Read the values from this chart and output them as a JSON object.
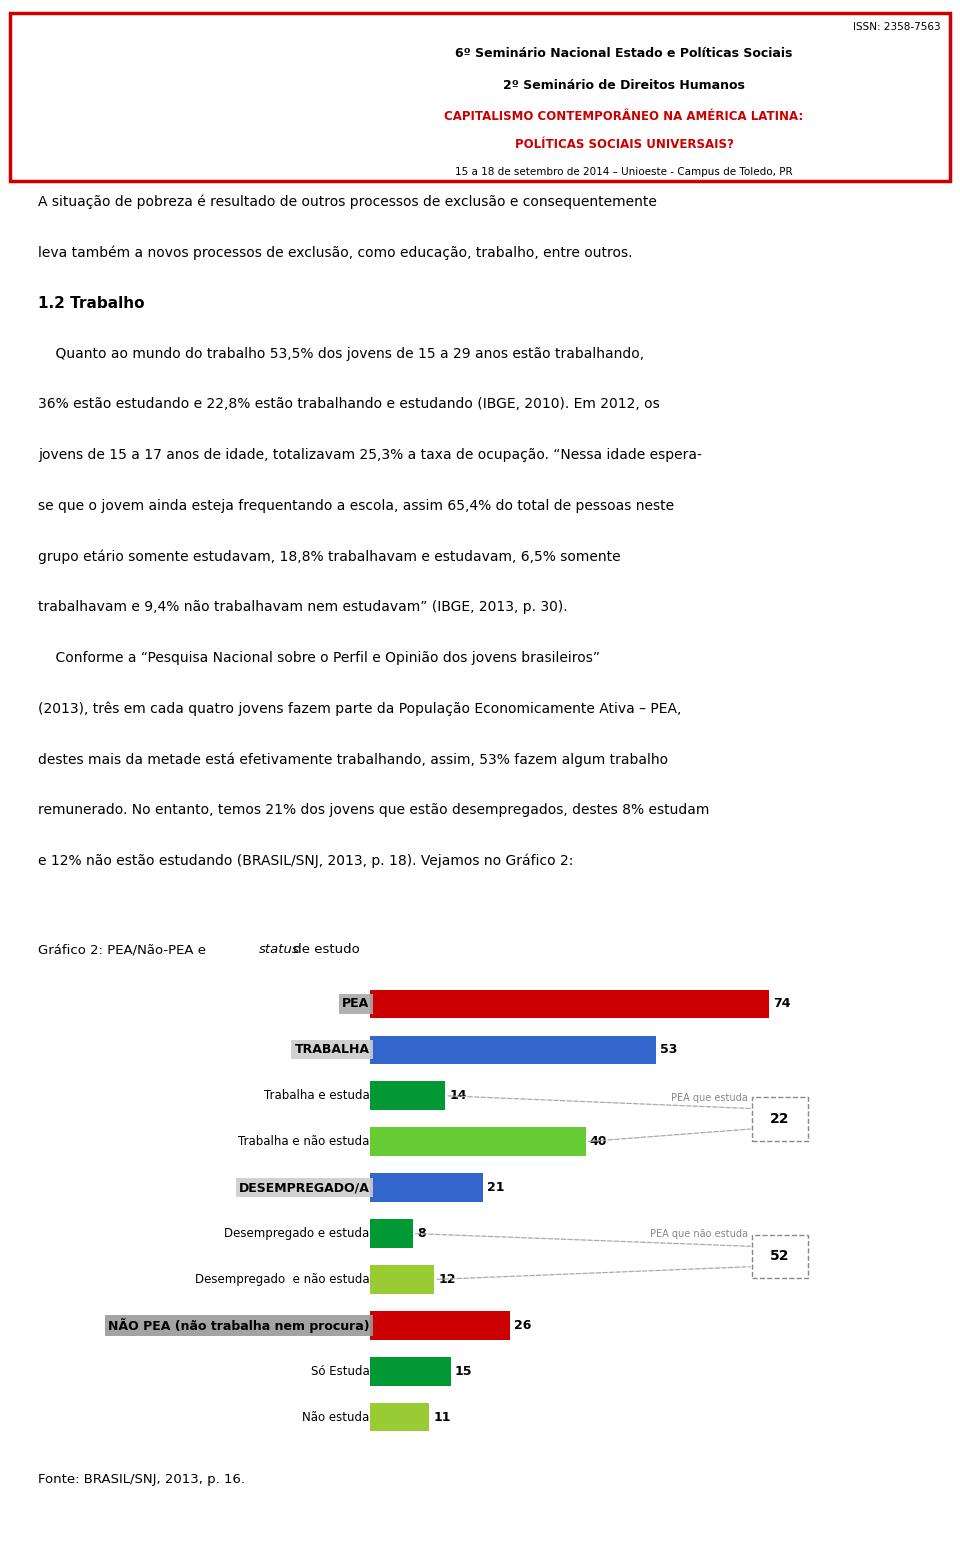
{
  "page_bg": "#ffffff",
  "header": {
    "issn": "ISSN: 2358-7563",
    "line1": "6º Seminário Nacional Estado e Políticas Sociais",
    "line2": "2º Seminário de Direitos Humanos",
    "red_line1": "CAPITALISMO CONTEMPORÂNEO NA AMÉRICA LATINA:",
    "red_line2": "POLÍTICAS SOCIAIS UNIVERSAIS?",
    "date_line": "15 a 18 de setembro de 2014 – Unioeste - Campus de Toledo, PR"
  },
  "body_lines": [
    {
      "text": "A situação de pobreza é resultado de outros processos de exclusão e consequentemente",
      "bold": false,
      "indent": false
    },
    {
      "text": "leva também a novos processos de exclusão, como educação, trabalho, entre outros.",
      "bold": false,
      "indent": false
    },
    {
      "text": "1.2 Trabalho",
      "bold": true,
      "indent": false
    },
    {
      "text": "    Quanto ao mundo do trabalho 53,5% dos jovens de 15 a 29 anos estão trabalhando,",
      "bold": false,
      "indent": true
    },
    {
      "text": "36% estão estudando e 22,8% estão trabalhando e estudando (IBGE, 2010). Em 2012, os",
      "bold": false,
      "indent": false
    },
    {
      "text": "jovens de 15 a 17 anos de idade, totalizavam 25,3% a taxa de ocupação. “Nessa idade espera-",
      "bold": false,
      "indent": false
    },
    {
      "text": "se que o jovem ainda esteja frequentando a escola, assim 65,4% do total de pessoas neste",
      "bold": false,
      "indent": false
    },
    {
      "text": "grupo etário somente estudavam, 18,8% trabalhavam e estudavam, 6,5% somente",
      "bold": false,
      "indent": false
    },
    {
      "text": "trabalhavam e 9,4% não trabalhavam nem estudavam” (IBGE, 2013, p. 30).",
      "bold": false,
      "indent": false
    },
    {
      "text": "    Conforme a “Pesquisa Nacional sobre o Perfil e Opinião dos jovens brasileiros”",
      "bold": false,
      "indent": true
    },
    {
      "text": "(2013), três em cada quatro jovens fazem parte da População Economicamente Ativa – PEA,",
      "bold": false,
      "indent": false
    },
    {
      "text": "destes mais da metade está efetivamente trabalhando, assim, 53% fazem algum trabalho",
      "bold": false,
      "indent": false
    },
    {
      "text": "remunerado. No entanto, temos 21% dos jovens que estão desempregados, destes 8% estudam",
      "bold": false,
      "indent": false
    },
    {
      "text": "e 12% não estão estudando (BRASIL/SNJ, 2013, p. 18). Vejamos no Gráfico 2:",
      "bold": false,
      "indent": false
    }
  ],
  "chart_title_plain": "Gráfico 2: PEA/Não-PEA e ",
  "chart_title_italic": "status",
  "chart_title_end": " de estudo",
  "categories": [
    "PEA",
    "TRABALHA",
    "Trabalha e estuda",
    "Trabalha e não estuda",
    "DESEMPREGADO/A",
    "Desempregado e estuda",
    "Desempregado  e não estuda",
    "NÃO PEA (não trabalha nem procura)",
    "Só Estuda",
    "Não estuda"
  ],
  "values": [
    74,
    53,
    14,
    40,
    21,
    8,
    12,
    26,
    15,
    11
  ],
  "bar_colors": [
    "#cc0000",
    "#3366cc",
    "#009933",
    "#66cc33",
    "#3366cc",
    "#009933",
    "#99cc33",
    "#cc0000",
    "#009933",
    "#99cc33"
  ],
  "label_bold": [
    true,
    true,
    false,
    false,
    true,
    false,
    false,
    true,
    false,
    false
  ],
  "label_bg": [
    "#aaaaaa",
    "#cccccc",
    "none",
    "none",
    "#cccccc",
    "none",
    "none",
    "#999999",
    "none",
    "none"
  ],
  "ann1_label": "PEA que estuda",
  "ann1_value": "22",
  "ann2_label": "PEA que não estuda",
  "ann2_value": "52",
  "fonte": "Fonte: BRASIL/SNJ, 2013, p. 16."
}
